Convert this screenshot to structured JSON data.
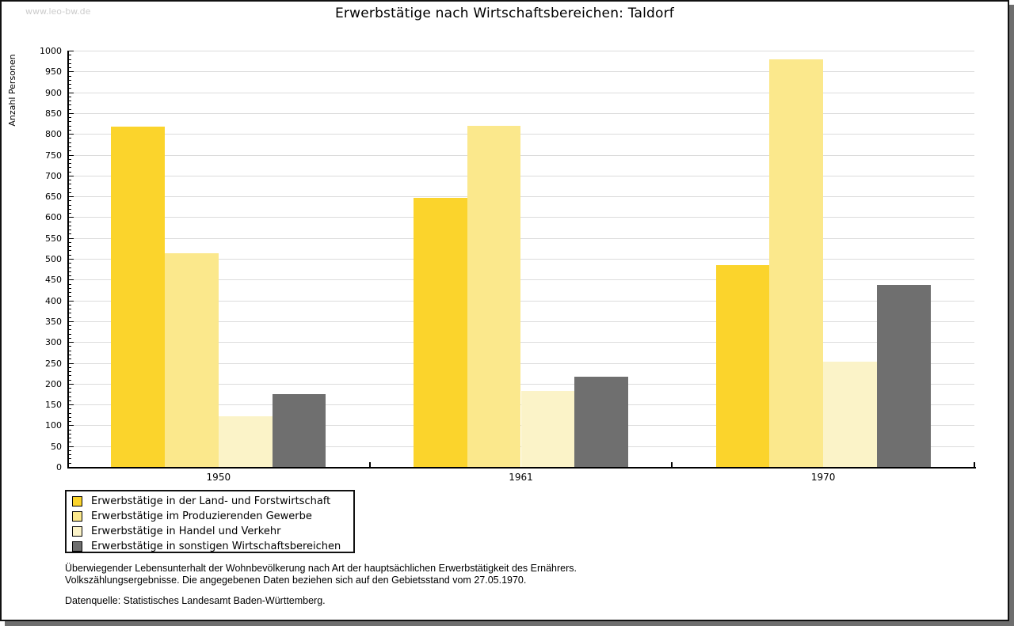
{
  "watermark": "www.leo-bw.de",
  "chart_data": {
    "type": "bar",
    "title": "Erwerbstätige nach Wirtschaftsbereichen: Taldorf",
    "ylabel": "Anzahl Personen",
    "xlabel": "",
    "ylim": [
      0,
      1000
    ],
    "ytick_step": 50,
    "yminor_step": 10,
    "grid": true,
    "legend_position": "bottom-left",
    "categories": [
      "1950",
      "1961",
      "1970"
    ],
    "series": [
      {
        "name": "Erwerbstätige in der Land- und Forstwirtschaft",
        "color": "#FBD42C",
        "values": [
          818,
          646,
          485
        ]
      },
      {
        "name": "Erwerbstätige im Produzierenden Gewerbe",
        "color": "#FBE88C",
        "values": [
          513,
          820,
          980
        ]
      },
      {
        "name": "Erwerbstätige in Handel und Verkehr",
        "color": "#FBF3C8",
        "values": [
          121,
          183,
          253
        ]
      },
      {
        "name": "Erwerbstätige in sonstigen Wirtschaftsbereichen",
        "color": "#6F6F6F",
        "values": [
          175,
          216,
          438
        ]
      }
    ],
    "colors": {
      "grid": "#dcdcdc",
      "axis": "#000000"
    }
  },
  "footnotes": {
    "line1": "Überwiegender Lebensunterhalt der Wohnbevölkerung nach Art der hauptsächlichen Erwerbstätigkeit des Ernährers.",
    "line2": "Volkszählungsergebnisse. Die angegebenen Daten beziehen sich auf den Gebietsstand vom 27.05.1970.",
    "source": "Datenquelle: Statistisches Landesamt Baden-Württemberg."
  }
}
